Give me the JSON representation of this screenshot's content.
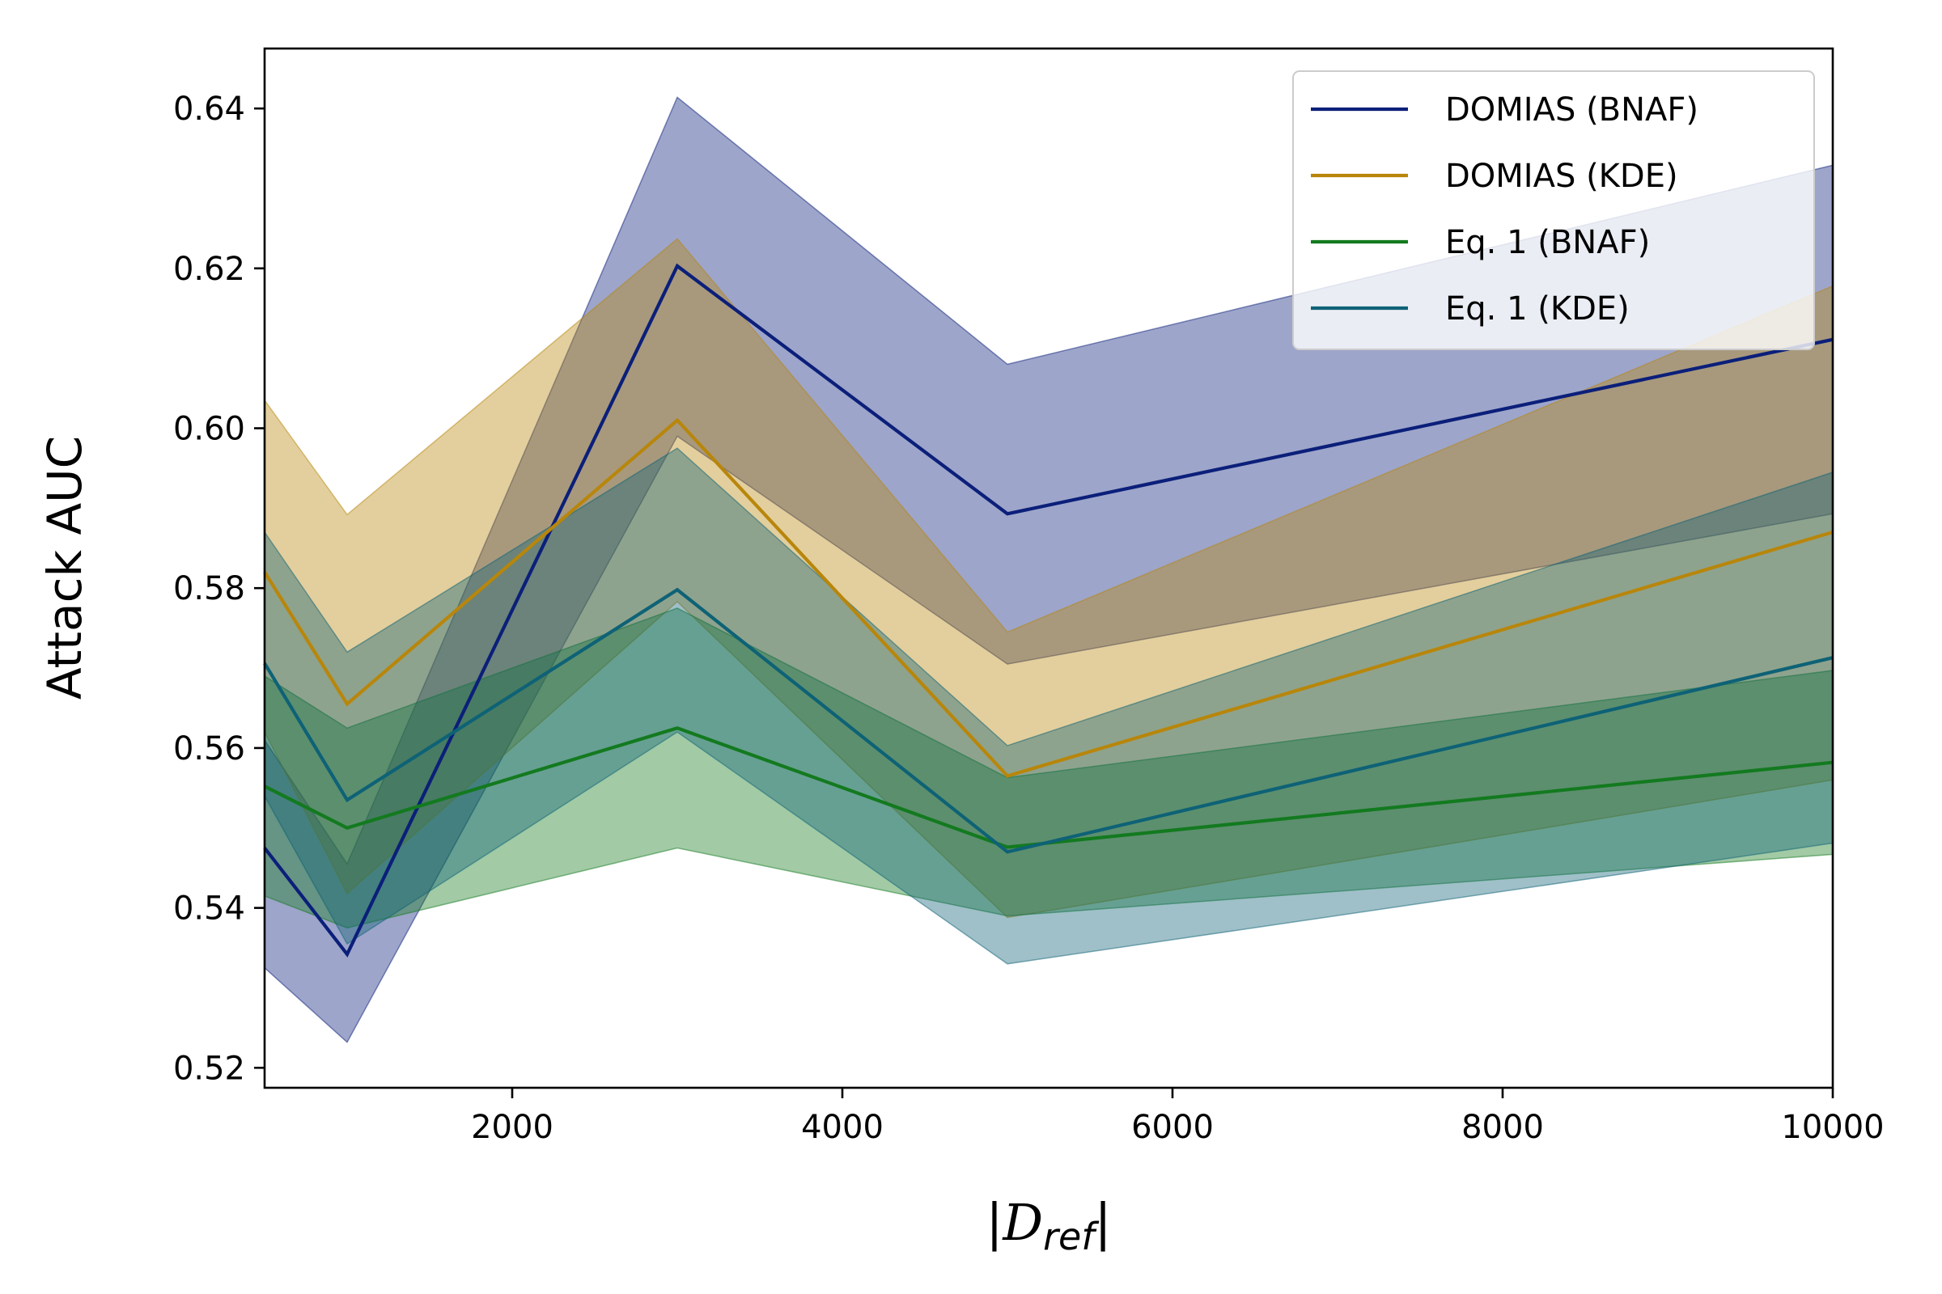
{
  "chart_data": {
    "type": "line",
    "title": "",
    "xlabel": "|D_ref|",
    "xlabel_parts": {
      "open": "|",
      "symbol": "D",
      "subscript": "ref",
      "close": "|"
    },
    "ylabel": "Attack AUC",
    "xlim": [
      500,
      10000
    ],
    "ylim": [
      0.5175,
      0.6475
    ],
    "xticks": [
      2000,
      4000,
      6000,
      8000,
      10000
    ],
    "yticks": [
      0.52,
      0.54,
      0.56,
      0.58,
      0.6,
      0.62,
      0.64
    ],
    "ytick_labels": [
      "0.52",
      "0.54",
      "0.56",
      "0.58",
      "0.60",
      "0.62",
      "0.64"
    ],
    "x": [
      500,
      1000,
      3000,
      5000,
      10000
    ],
    "legend_position": "top-right",
    "series": [
      {
        "name": "DOMIAS (BNAF)",
        "color": "#0b1f7a",
        "mean": [
          0.5475,
          0.5342,
          0.6203,
          0.5893,
          0.6111
        ],
        "lower": [
          0.5325,
          0.5232,
          0.599,
          0.5705,
          0.5893
        ],
        "upper": [
          0.561,
          0.5455,
          0.6414,
          0.608,
          0.6329
        ]
      },
      {
        "name": "DOMIAS (KDE)",
        "color": "#b8860b",
        "mean": [
          0.582,
          0.5655,
          0.601,
          0.5565,
          0.587
        ],
        "lower": [
          0.562,
          0.5418,
          0.5783,
          0.5388,
          0.556
        ],
        "upper": [
          0.6035,
          0.5892,
          0.6237,
          0.5745,
          0.6178
        ]
      },
      {
        "name": "Eq. 1 (BNAF)",
        "color": "#137a1f",
        "mean": [
          0.5552,
          0.55,
          0.5625,
          0.5476,
          0.5582
        ],
        "lower": [
          0.5415,
          0.5375,
          0.5475,
          0.539,
          0.5467
        ],
        "upper": [
          0.569,
          0.5625,
          0.5775,
          0.5563,
          0.5697
        ]
      },
      {
        "name": "Eq. 1 (KDE)",
        "color": "#0e6276",
        "mean": [
          0.5706,
          0.5535,
          0.5798,
          0.547,
          0.5713
        ],
        "lower": [
          0.554,
          0.5355,
          0.562,
          0.533,
          0.5481
        ],
        "upper": [
          0.587,
          0.572,
          0.5975,
          0.5603,
          0.5945
        ]
      }
    ]
  }
}
